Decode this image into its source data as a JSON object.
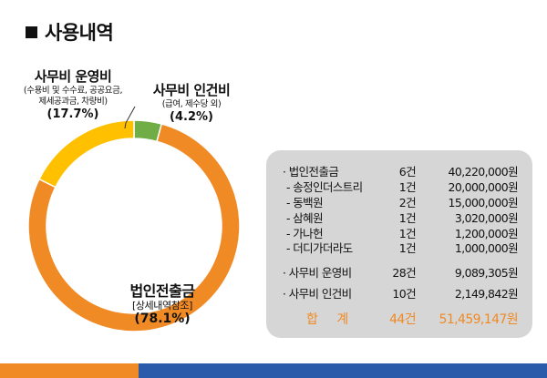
{
  "header": {
    "title": "사용내역"
  },
  "chart_data": {
    "type": "pie",
    "donut": true,
    "slices": [
      {
        "key": "corp",
        "label": "법인전출금",
        "note": "[상세내역참조]",
        "percent": 78.1,
        "percent_label": "(78.1%)",
        "color": "#f08a24"
      },
      {
        "key": "op",
        "label": "사무비 운영비",
        "note": "(수용비 및 수수료, 공공요금,\n제세공과금, 차량비)",
        "percent": 17.7,
        "percent_label": "(17.7%)",
        "color": "#ffc000"
      },
      {
        "key": "labor",
        "label": "사무비 인건비",
        "note": "(급여, 제수당 외)",
        "percent": 4.2,
        "percent_label": "(4.2%)",
        "color": "#70ad47"
      }
    ]
  },
  "table": {
    "rows": [
      {
        "name": "· 법인전출금",
        "count": "6건",
        "amount": "40,220,000원",
        "sub": false
      },
      {
        "name": "- 송정인더스트리",
        "count": "1건",
        "amount": "20,000,000원",
        "sub": true
      },
      {
        "name": "- 동백원",
        "count": "2건",
        "amount": "15,000,000원",
        "sub": true
      },
      {
        "name": "- 삼혜원",
        "count": "1건",
        "amount": "3,020,000원",
        "sub": true
      },
      {
        "name": "- 가나헌",
        "count": "1건",
        "amount": "1,200,000원",
        "sub": true
      },
      {
        "name": "- 더디가더라도",
        "count": "1건",
        "amount": "1,000,000원",
        "sub": true
      },
      {
        "name": "· 사무비 운영비",
        "count": "28건",
        "amount": "9,089,305원",
        "sub": false
      },
      {
        "name": "· 사무비 인건비",
        "count": "10건",
        "amount": "2,149,842원",
        "sub": false
      }
    ],
    "total": {
      "name": "합 계",
      "count": "44건",
      "amount": "51,459,147원"
    }
  }
}
